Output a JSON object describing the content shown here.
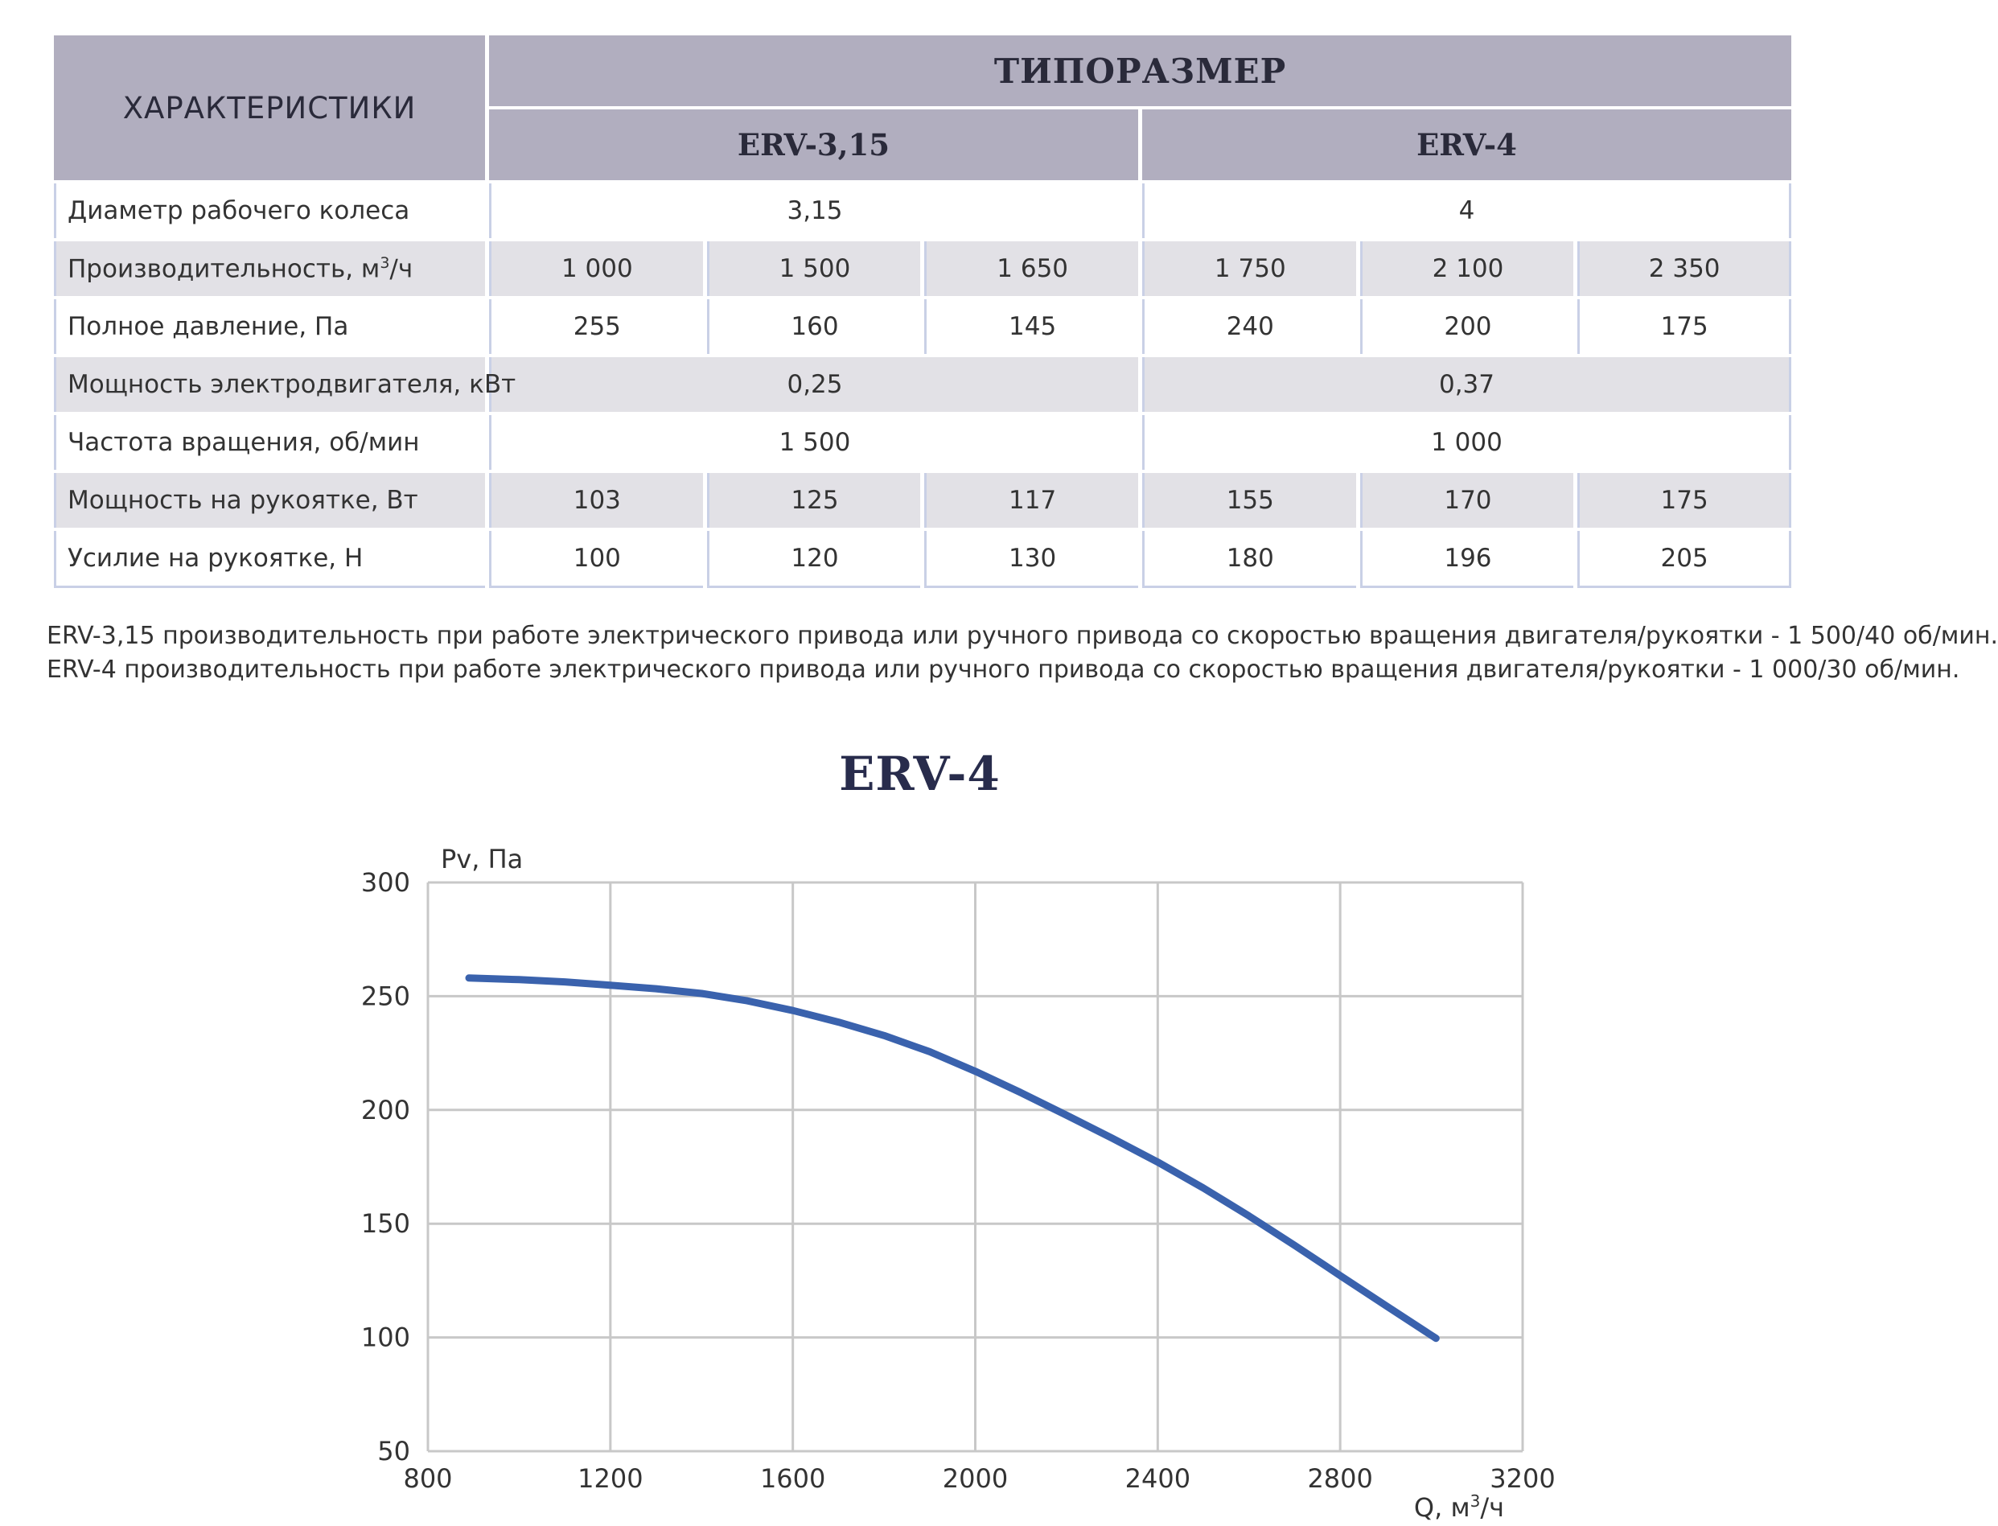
{
  "table": {
    "characteristics_header": "ХАРАКТЕРИСТИКИ",
    "group_header": "ТИПОРАЗМЕР",
    "models": [
      "ERV-3,15",
      "ERV-4"
    ],
    "rows": [
      {
        "label": "Диаметр рабочего колеса",
        "merged": [
          "3,15",
          "4"
        ]
      },
      {
        "label": "Производительность, м",
        "label_sup": "3",
        "label_tail": "/ч",
        "values": [
          "1 000",
          "1 500",
          "1 650",
          "1 750",
          "2 100",
          "2 350"
        ]
      },
      {
        "label": "Полное давление, Па",
        "values": [
          "255",
          "160",
          "145",
          "240",
          "200",
          "175"
        ]
      },
      {
        "label": "Мощность электродвигателя, кВт",
        "merged": [
          "0,25",
          "0,37"
        ]
      },
      {
        "label": "Частота вращения, об/мин",
        "merged": [
          "1 500",
          "1 000"
        ]
      },
      {
        "label": "Мощность на рукоятке, Вт",
        "values": [
          "103",
          "125",
          "117",
          "155",
          "170",
          "175"
        ]
      },
      {
        "label": "Усилие на рукоятке, Н",
        "values": [
          "100",
          "120",
          "130",
          "180",
          "196",
          "205"
        ]
      }
    ]
  },
  "notes": [
    "ERV-3,15 производительность при работе электрического привода или ручного привода со скоростью вращения двигателя/рукоятки - 1 500/40 об/мин.",
    "ERV-4 производительность при работе электрического привода или ручного привода со скоростью вращения двигателя/рукоятки - 1 000/30 об/мин."
  ],
  "chart_data": {
    "type": "line",
    "title": "ERV-4",
    "ylabel": "Pv, Па",
    "xlabel": "Q, м",
    "xlabel_sup": "3",
    "xlabel_tail": "/ч",
    "xlim": [
      800,
      3200
    ],
    "ylim": [
      50,
      300
    ],
    "xticks": [
      800,
      1200,
      1600,
      2000,
      2400,
      2800,
      3200
    ],
    "yticks": [
      50,
      100,
      150,
      200,
      250,
      300
    ],
    "grid": true,
    "series": [
      {
        "color": "#3a62ad",
        "x": [
          890,
          1000,
          1100,
          1200,
          1300,
          1400,
          1500,
          1600,
          1700,
          1800,
          1900,
          2000,
          2100,
          2200,
          2300,
          2400,
          2500,
          2600,
          2700,
          2800,
          2900,
          3010
        ],
        "y": [
          258,
          257.3,
          256.3,
          254.8,
          253.3,
          251.2,
          248,
          243.7,
          238.6,
          232.7,
          225.6,
          217,
          207.6,
          197.7,
          187.6,
          177.1,
          165.7,
          153.4,
          140.5,
          127.2,
          114,
          99.6
        ]
      }
    ]
  }
}
